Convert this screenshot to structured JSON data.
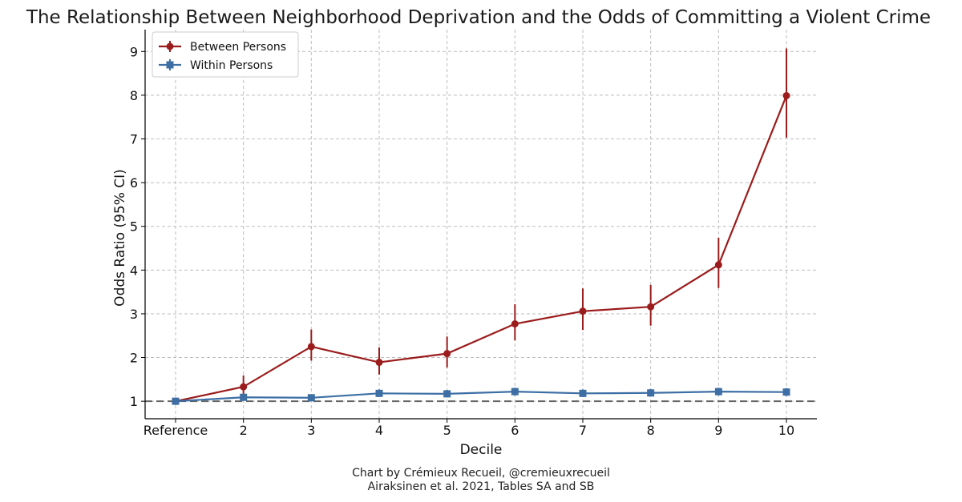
{
  "chart_data": {
    "type": "line",
    "title": "The Relationship Between Neighborhood Deprivation and the Odds of Committing a Violent Crime",
    "xlabel": "Decile",
    "ylabel": "Odds Ratio (95% CI)",
    "categories": [
      "Reference",
      "2",
      "3",
      "4",
      "5",
      "6",
      "7",
      "8",
      "9",
      "10"
    ],
    "ylim": [
      0.6,
      9.5
    ],
    "yticks": [
      "1",
      "2",
      "3",
      "4",
      "5",
      "6",
      "7",
      "8",
      "9"
    ],
    "grid": true,
    "legend_position": "top-left",
    "reference_line": 1,
    "series": [
      {
        "name": "Between Persons",
        "color": "#9b1c1c",
        "marker": "circle",
        "values": [
          1.0,
          1.33,
          2.25,
          1.89,
          2.09,
          2.77,
          3.06,
          3.16,
          4.12,
          7.99
        ],
        "ci_low": [
          1.0,
          1.13,
          1.93,
          1.61,
          1.77,
          2.39,
          2.63,
          2.73,
          3.59,
          7.03
        ],
        "ci_high": [
          1.0,
          1.59,
          2.64,
          2.23,
          2.48,
          3.22,
          3.58,
          3.66,
          4.74,
          9.07
        ]
      },
      {
        "name": "Within Persons",
        "color": "#3d6fa5",
        "marker": "square",
        "values": [
          1.0,
          1.09,
          1.08,
          1.18,
          1.17,
          1.22,
          1.18,
          1.19,
          1.22,
          1.21
        ],
        "ci_low": [
          1.0,
          1.02,
          1.02,
          1.1,
          1.09,
          1.13,
          1.1,
          1.11,
          1.13,
          1.12
        ],
        "ci_high": [
          1.0,
          1.17,
          1.15,
          1.27,
          1.26,
          1.31,
          1.27,
          1.28,
          1.31,
          1.3
        ]
      }
    ]
  },
  "credits": {
    "line1": "Chart by Crémieux Recueil, @cremieuxrecueil",
    "line2": "Airaksinen et al. 2021, Tables SA and SB"
  }
}
